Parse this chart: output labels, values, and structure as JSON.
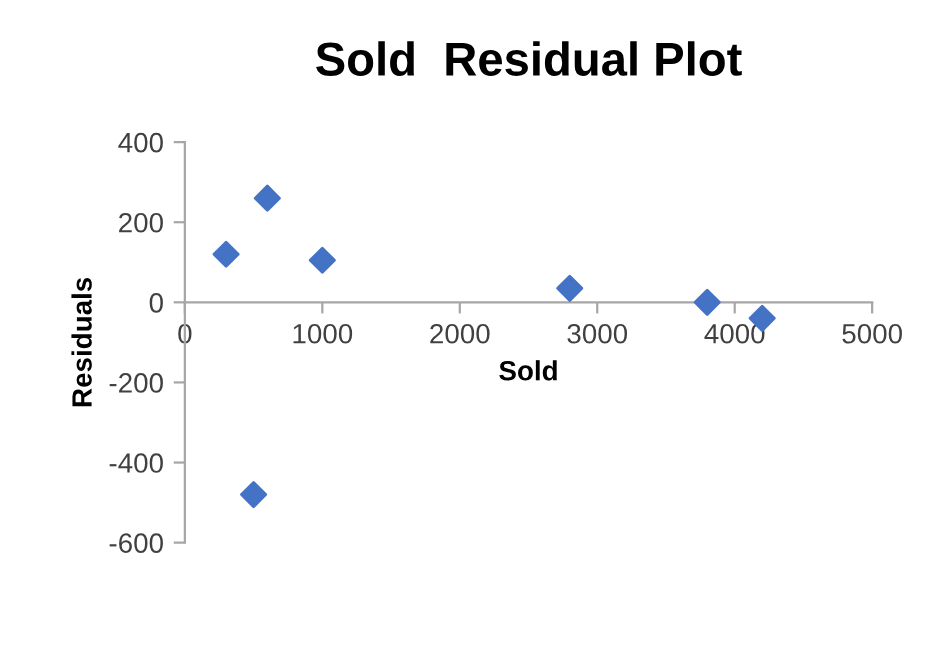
{
  "chart_data": {
    "type": "scatter",
    "title": "Sold  Residual Plot",
    "xlabel": "Sold",
    "ylabel": "Residuals",
    "x": [
      300,
      600,
      1000,
      2800,
      3800,
      4200,
      500
    ],
    "series": [
      {
        "color": "#4472c4",
        "values": [
          120,
          260,
          105,
          35,
          0,
          -40,
          -480
        ]
      }
    ],
    "marker": "diamond",
    "grid": false,
    "legend": false,
    "xlim": [
      0,
      5000
    ],
    "xticks": [
      0,
      1000,
      2000,
      3000,
      4000,
      5000
    ],
    "ylim": [
      -600,
      400
    ],
    "yticks": [
      -600,
      -400,
      -200,
      0,
      200,
      400
    ]
  }
}
